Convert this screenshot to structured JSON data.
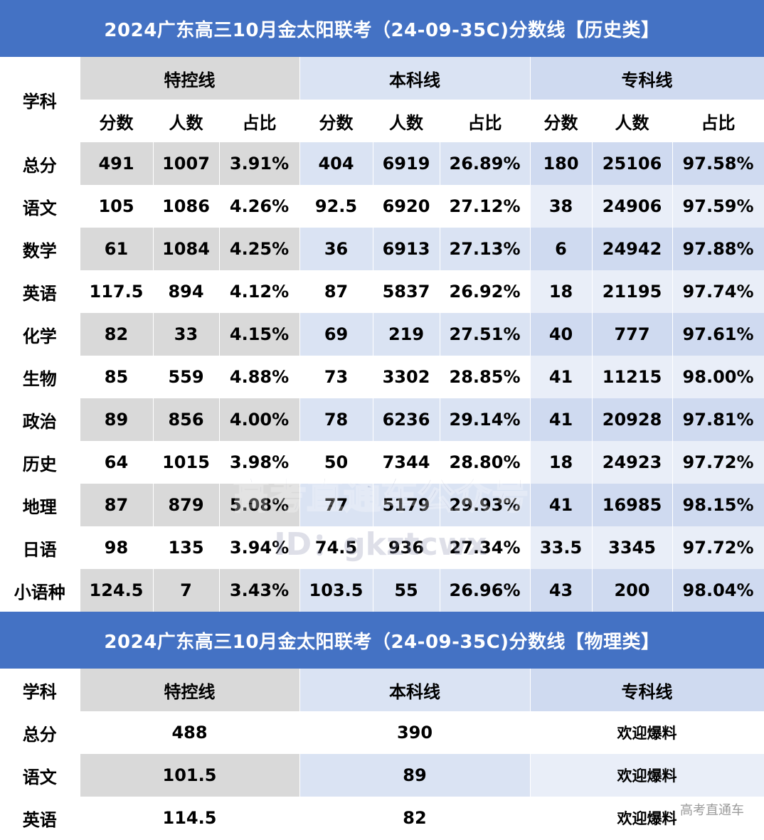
{
  "history": {
    "title": "2024广东高三10月金太阳联考（24-09-35C)分数线【历史类】",
    "subject_header": "学科",
    "groups": [
      "特控线",
      "本科线",
      "专科线"
    ],
    "sub_headers": [
      "分数",
      "人数",
      "占比",
      "分数",
      "人数",
      "占比",
      "分数",
      "人数",
      "占比"
    ],
    "rows": [
      {
        "subject": "总分",
        "cells": [
          "491",
          "1007",
          "3.91%",
          "404",
          "6919",
          "26.89%",
          "180",
          "25106",
          "97.58%"
        ]
      },
      {
        "subject": "语文",
        "cells": [
          "105",
          "1086",
          "4.26%",
          "92.5",
          "6920",
          "27.12%",
          "38",
          "24906",
          "97.59%"
        ]
      },
      {
        "subject": "数学",
        "cells": [
          "61",
          "1084",
          "4.25%",
          "36",
          "6913",
          "27.13%",
          "6",
          "24942",
          "97.88%"
        ]
      },
      {
        "subject": "英语",
        "cells": [
          "117.5",
          "894",
          "4.12%",
          "87",
          "5837",
          "26.92%",
          "18",
          "21195",
          "97.74%"
        ]
      },
      {
        "subject": "化学",
        "cells": [
          "82",
          "33",
          "4.15%",
          "69",
          "219",
          "27.51%",
          "40",
          "777",
          "97.61%"
        ]
      },
      {
        "subject": "生物",
        "cells": [
          "85",
          "559",
          "4.88%",
          "73",
          "3302",
          "28.85%",
          "41",
          "11215",
          "98.00%"
        ]
      },
      {
        "subject": "政治",
        "cells": [
          "89",
          "856",
          "4.00%",
          "78",
          "6236",
          "29.14%",
          "41",
          "20928",
          "97.81%"
        ]
      },
      {
        "subject": "历史",
        "cells": [
          "64",
          "1015",
          "3.98%",
          "50",
          "7344",
          "28.80%",
          "18",
          "24923",
          "97.72%"
        ]
      },
      {
        "subject": "地理",
        "cells": [
          "87",
          "879",
          "5.08%",
          "77",
          "5179",
          "29.93%",
          "41",
          "16985",
          "98.15%"
        ]
      },
      {
        "subject": "日语",
        "cells": [
          "98",
          "135",
          "3.94%",
          "74.5",
          "936",
          "27.34%",
          "33.5",
          "3345",
          "97.72%"
        ]
      },
      {
        "subject": "小语种",
        "cells": [
          "124.5",
          "7",
          "3.43%",
          "103.5",
          "55",
          "26.96%",
          "43",
          "200",
          "98.04%"
        ]
      }
    ]
  },
  "physics": {
    "title": "2024广东高三10月金太阳联考（24-09-35C)分数线【物理类】",
    "subject_header": "学科",
    "groups": [
      "特控线",
      "本科线",
      "专科线"
    ],
    "rows": [
      {
        "subject": "总分",
        "cells": [
          "488",
          "390",
          "欢迎爆料"
        ]
      },
      {
        "subject": "语文",
        "cells": [
          "101.5",
          "89",
          "欢迎爆料"
        ]
      },
      {
        "subject": "英语",
        "cells": [
          "114.5",
          "82",
          "欢迎爆料"
        ]
      }
    ]
  },
  "watermark": {
    "text": "高考直通车公众号",
    "id_text": "ID：gkztcwx"
  },
  "source_label": "高考直通车",
  "colors": {
    "header_blue": "#4472c4",
    "gray": "#d9d9d9",
    "light_blue": "#dae3f3",
    "pale_blue": "#e9eef8"
  }
}
